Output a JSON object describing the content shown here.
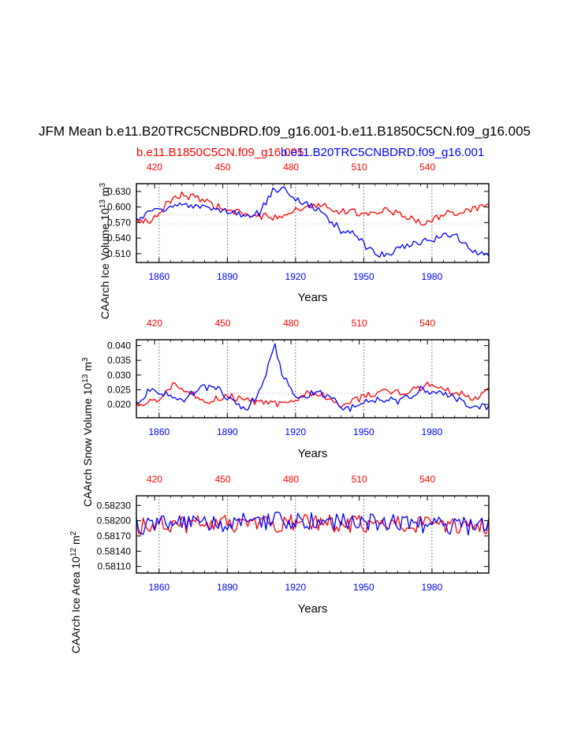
{
  "figure": {
    "title": "JFM Mean b.e11.B20TRC5CNBDRD.f09_g16.001-b.e11.B1850C5CN.f09_g16.005",
    "legend_red": "b.e11.B1850C5CN.f09_g16.005",
    "legend_blue": "b.e11.B20TRC5CNBDRD.f09_g16.001",
    "color_red": "#ff0000",
    "color_blue": "#0000ff"
  },
  "chart_data": [
    {
      "type": "line",
      "ylabel": "CAArch Ice Volume 10",
      "ylabel_exp": "13",
      "ylabel_unit": " m",
      "ylabel_unit_exp": "3",
      "xlabel": "Years",
      "xlim": [
        1850,
        2005
      ],
      "top_xlim": [
        412,
        567
      ],
      "ylim": [
        0.493,
        0.645
      ],
      "yticks": [
        "0.510",
        "0.540",
        "0.570",
        "0.600",
        "0.630"
      ],
      "bottom_ticks": [
        "1860",
        "1890",
        "1920",
        "1950",
        "1980"
      ],
      "top_ticks": [
        "420",
        "450",
        "480",
        "510",
        "540"
      ],
      "series": [
        {
          "name": "b.e11.B1850C5CN.f09_g16.005",
          "color": "#ff0000",
          "base": 0.5846,
          "trend": [
            [
              1850,
              0.574
            ],
            [
              1856,
              0.572
            ],
            [
              1860,
              0.583
            ],
            [
              1864,
              0.612
            ],
            [
              1870,
              0.624
            ],
            [
              1876,
              0.617
            ],
            [
              1882,
              0.607
            ],
            [
              1890,
              0.593
            ],
            [
              1900,
              0.584
            ],
            [
              1910,
              0.58
            ],
            [
              1920,
              0.593
            ],
            [
              1930,
              0.607
            ],
            [
              1940,
              0.592
            ],
            [
              1950,
              0.588
            ],
            [
              1960,
              0.594
            ],
            [
              1970,
              0.58
            ],
            [
              1978,
              0.567
            ],
            [
              1985,
              0.588
            ],
            [
              1995,
              0.59
            ],
            [
              2005,
              0.605
            ]
          ]
        },
        {
          "name": "b.e11.B20TRC5CNBDRD.f09_g16.001",
          "color": "#0000ff",
          "base": 0.5674,
          "trend": [
            [
              1850,
              0.573
            ],
            [
              1856,
              0.588
            ],
            [
              1862,
              0.597
            ],
            [
              1870,
              0.607
            ],
            [
              1880,
              0.597
            ],
            [
              1890,
              0.591
            ],
            [
              1898,
              0.581
            ],
            [
              1904,
              0.588
            ],
            [
              1910,
              0.63
            ],
            [
              1914,
              0.637
            ],
            [
              1920,
              0.613
            ],
            [
              1928,
              0.6
            ],
            [
              1934,
              0.58
            ],
            [
              1940,
              0.555
            ],
            [
              1946,
              0.548
            ],
            [
              1950,
              0.528
            ],
            [
              1956,
              0.506
            ],
            [
              1962,
              0.51
            ],
            [
              1968,
              0.525
            ],
            [
              1975,
              0.533
            ],
            [
              1980,
              0.537
            ],
            [
              1986,
              0.545
            ],
            [
              1990,
              0.55
            ],
            [
              1994,
              0.528
            ],
            [
              2000,
              0.512
            ],
            [
              2005,
              0.504
            ]
          ]
        }
      ]
    },
    {
      "type": "line",
      "ylabel": "CAArch Snow Volume 10",
      "ylabel_exp": "13",
      "ylabel_unit": " m",
      "ylabel_unit_exp": "3",
      "xlabel": "Years",
      "xlim": [
        1850,
        2005
      ],
      "top_xlim": [
        412,
        567
      ],
      "ylim": [
        0.0155,
        0.042
      ],
      "yticks": [
        "0.020",
        "0.025",
        "0.030",
        "0.035",
        "0.040"
      ],
      "bottom_ticks": [
        "1860",
        "1890",
        "1920",
        "1950",
        "1980"
      ],
      "top_ticks": [
        "420",
        "450",
        "480",
        "510",
        "540"
      ],
      "series": [
        {
          "name": "b.e11.B1850C5CN.f09_g16.005",
          "color": "#ff0000",
          "base": 0.0237,
          "trend": [
            [
              1850,
              0.02
            ],
            [
              1860,
              0.022
            ],
            [
              1866,
              0.027
            ],
            [
              1872,
              0.025
            ],
            [
              1880,
              0.021
            ],
            [
              1890,
              0.023
            ],
            [
              1900,
              0.021
            ],
            [
              1910,
              0.02
            ],
            [
              1918,
              0.021
            ],
            [
              1925,
              0.024
            ],
            [
              1932,
              0.023
            ],
            [
              1940,
              0.019
            ],
            [
              1948,
              0.022
            ],
            [
              1958,
              0.025
            ],
            [
              1968,
              0.024
            ],
            [
              1980,
              0.027
            ],
            [
              1990,
              0.024
            ],
            [
              2000,
              0.022
            ],
            [
              2005,
              0.025
            ]
          ]
        },
        {
          "name": "b.e11.B20TRC5CNBDRD.f09_g16.001",
          "color": "#0000ff",
          "base": 0.0238,
          "trend": [
            [
              1850,
              0.02
            ],
            [
              1856,
              0.025
            ],
            [
              1862,
              0.024
            ],
            [
              1870,
              0.021
            ],
            [
              1878,
              0.026
            ],
            [
              1886,
              0.025
            ],
            [
              1892,
              0.021
            ],
            [
              1898,
              0.018
            ],
            [
              1904,
              0.024
            ],
            [
              1908,
              0.033
            ],
            [
              1911,
              0.04
            ],
            [
              1914,
              0.031
            ],
            [
              1920,
              0.022
            ],
            [
              1928,
              0.024
            ],
            [
              1936,
              0.023
            ],
            [
              1942,
              0.018
            ],
            [
              1950,
              0.021
            ],
            [
              1958,
              0.022
            ],
            [
              1966,
              0.021
            ],
            [
              1975,
              0.025
            ],
            [
              1985,
              0.024
            ],
            [
              1995,
              0.02
            ],
            [
              2005,
              0.019
            ]
          ]
        }
      ]
    },
    {
      "type": "line",
      "ylabel": "CAArch Ice Area 10",
      "ylabel_exp": "12",
      "ylabel_unit": " m",
      "ylabel_unit_exp": "2",
      "xlabel": "Years",
      "xlim": [
        1850,
        2005
      ],
      "top_xlim": [
        412,
        567
      ],
      "ylim": [
        0.58097,
        0.58249
      ],
      "yticks": [
        "0.58110",
        "0.58140",
        "0.58170",
        "0.58200",
        "0.58230"
      ],
      "bottom_ticks": [
        "1860",
        "1890",
        "1920",
        "1950",
        "1980"
      ],
      "top_ticks": [
        "420",
        "450",
        "480",
        "510",
        "540"
      ],
      "series": [
        {
          "name": "b.e11.B1850C5CN.f09_g16.005",
          "color": "#ff0000",
          "base": 0.58193,
          "trend": [
            [
              1850,
              0.5819
            ],
            [
              1900,
              0.58195
            ],
            [
              1950,
              0.58193
            ],
            [
              2005,
              0.5819
            ]
          ]
        },
        {
          "name": "b.e11.B20TRC5CNBDRD.f09_g16.001",
          "color": "#0000ff",
          "base": 0.58194,
          "trend": [
            [
              1850,
              0.5819
            ],
            [
              1920,
              0.582
            ],
            [
              1960,
              0.58195
            ],
            [
              2005,
              0.58188
            ]
          ]
        }
      ]
    }
  ]
}
